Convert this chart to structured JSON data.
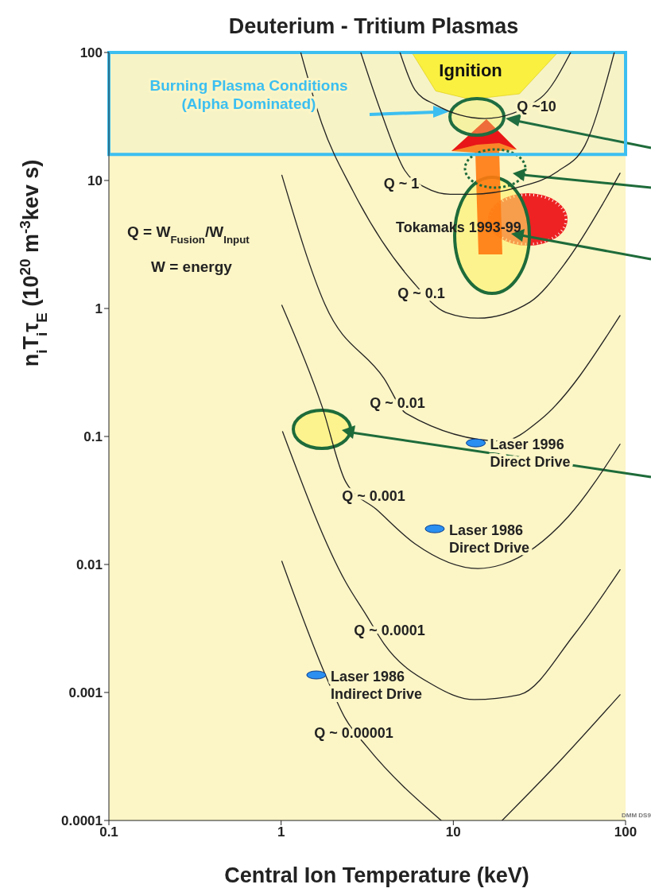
{
  "chart_data": {
    "type": "line",
    "title": "Deuterium - Tritium Plasmas",
    "xlabel": "Central Ion Temperature (keV)",
    "ylabel": "n$_{i}$T$_{i}$τ$_{E}$ (10$^{20}$ m$^{-3}$kev s)",
    "log": "xy",
    "xlim": [
      0.1,
      100
    ],
    "ylim": [
      0.0001,
      100
    ],
    "xticks": [
      0.1,
      1,
      10,
      100
    ],
    "yticks": [
      0.0001,
      0.001,
      0.01,
      0.1,
      1,
      10,
      100
    ],
    "series": [
      {
        "type": "area",
        "name": "Ignition",
        "color": "#fff23a",
        "x": [
          5.74,
          7.9,
          12.6,
          24.2,
          40.4
        ],
        "values": [
          100,
          50,
          43,
          47.5,
          100
        ]
      },
      {
        "type": "scatter",
        "color": "#2a8ff0",
        "x": [
          1.6,
          7.8,
          13.5
        ],
        "values": [
          0.00137,
          0.019,
          0.089
        ]
      },
      {
        "color": "#222222",
        "x": [
          4.9,
          5.99,
          7.9,
          15.2,
          32,
          48
        ],
        "values": [
          100,
          51,
          39,
          30.5,
          44,
          100
        ]
      },
      {
        "color": "#222222",
        "x": [
          2.9,
          3.79,
          5.22,
          6.89,
          9.58,
          12.6,
          24.2,
          40.4,
          58.1,
          80.8,
          86
        ],
        "values": [
          100,
          34.7,
          12,
          8.8,
          7.8,
          7.8,
          8.9,
          11.8,
          18.8,
          73,
          100
        ]
      },
      {
        "color": "#222222",
        "x": [
          1.3,
          1.72,
          2.61,
          5.74,
          9.08,
          13.9,
          27.8,
          45,
          73.4,
          92.9
        ],
        "values": [
          100,
          28,
          8.3,
          1.65,
          0.93,
          0.84,
          1.12,
          2.3,
          6.5,
          11.4
        ]
      },
      {
        "color": "#222222",
        "x": [
          1.01,
          1.8,
          3.96,
          5.33,
          19.2,
          32,
          92.9
        ],
        "values": [
          11,
          1.07,
          0.284,
          0.151,
          0.092,
          0.135,
          0.88
        ]
      },
      {
        "color": "#222222",
        "x": [
          1.01,
          1.72,
          2.37,
          3.59,
          5.99,
          13.9,
          19.2,
          46.4,
          92.9
        ],
        "values": [
          1.06,
          0.175,
          0.0443,
          0.0268,
          0.0145,
          0.0093,
          0.01,
          0.0236,
          0.087
        ]
      },
      {
        "color": "#222222",
        "x": [
          1.02,
          2.37,
          3.13,
          3.96,
          7.58,
          13.2,
          24.2,
          50,
          92.9
        ],
        "values": [
          0.109,
          0.0073,
          0.004,
          0.0024,
          0.00115,
          0.00088,
          0.00096,
          0.0028,
          0.0091
        ]
      },
      {
        "color": "#222222",
        "x": [
          1.01,
          1.8,
          2.37,
          3.13,
          8.5,
          13.2,
          19.2,
          40.4,
          92.9
        ],
        "values": [
          0.0106,
          0.00139,
          0.00062,
          0.00038,
          0.0001,
          null,
          0.0001,
          0.00028,
          0.00096
        ]
      }
    ],
    "bands": [
      {
        "axis": "y",
        "from": 16,
        "to": 100,
        "label": "Burning Plasma  Conditions\n(Alpha Dominated)",
        "color": "#3cbff0"
      }
    ],
    "annotations": [
      "Q ~10",
      "Q ~ 1",
      "Q ~ 0.1",
      "Q ~ 0.01",
      "Q ~ 0.001",
      "Q ~ 0.0001",
      "Q ~ 0.00001",
      "Tokamaks 1993-99",
      {
        "text": "Laser  1996\nDirect Drive",
        "x": 13.5,
        "y": 0.089
      },
      {
        "text": "Laser  1986\nDirect Drive",
        "x": 7.8,
        "y": 0.019
      },
      {
        "text": "Laser  1986\nIndirect Drive",
        "x": 1.6,
        "y": 0.00137
      },
      "Q  = W$_{Fusion}$/W$_{Input}$",
      "W = energy",
      "DMM DS9"
    ]
  }
}
